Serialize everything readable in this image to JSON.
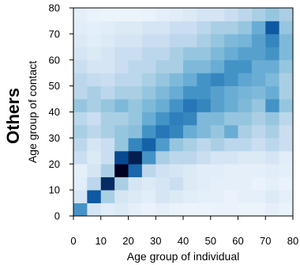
{
  "chart_data": {
    "type": "heatmap",
    "panel_title": "Others",
    "xlabel": "Age group of individual",
    "ylabel": "Age group of contact",
    "xlim": [
      0,
      80
    ],
    "ylim": [
      0,
      80
    ],
    "x_ticks": [
      "0",
      "10",
      "20",
      "30",
      "40",
      "50",
      "60",
      "70",
      "80"
    ],
    "y_ticks": [
      "0",
      "10",
      "20",
      "30",
      "40",
      "50",
      "60",
      "70",
      "80"
    ],
    "bin_width": 5,
    "colormap": [
      "#f7fbff",
      "#deebf7",
      "#c6dbef",
      "#9ecae1",
      "#6baed6",
      "#4292c6",
      "#2171b5",
      "#08519c",
      "#08306b",
      "#000022"
    ],
    "grid": false,
    "x_bins": [
      0,
      5,
      10,
      15,
      20,
      25,
      30,
      35,
      40,
      45,
      50,
      55,
      60,
      65,
      70,
      75
    ],
    "y_bins": [
      0,
      5,
      10,
      15,
      20,
      25,
      30,
      35,
      40,
      45,
      50,
      55,
      60,
      65,
      70,
      75
    ],
    "values": [
      [
        0.55,
        0.15,
        0.1,
        0.12,
        0.08,
        0.06,
        0.08,
        0.06,
        0.05,
        0.05,
        0.06,
        0.06,
        0.05,
        0.05,
        0.08,
        0.06
      ],
      [
        0.15,
        0.75,
        0.3,
        0.15,
        0.12,
        0.1,
        0.15,
        0.12,
        0.1,
        0.08,
        0.08,
        0.06,
        0.08,
        0.08,
        0.12,
        0.08
      ],
      [
        0.1,
        0.25,
        0.9,
        0.3,
        0.15,
        0.12,
        0.15,
        0.2,
        0.12,
        0.1,
        0.08,
        0.08,
        0.08,
        0.06,
        0.08,
        0.06
      ],
      [
        0.08,
        0.15,
        0.3,
        1.0,
        0.7,
        0.25,
        0.18,
        0.15,
        0.12,
        0.1,
        0.1,
        0.08,
        0.08,
        0.08,
        0.1,
        0.08
      ],
      [
        0.2,
        0.12,
        0.2,
        0.8,
        0.93,
        0.55,
        0.3,
        0.25,
        0.25,
        0.2,
        0.15,
        0.15,
        0.12,
        0.12,
        0.15,
        0.1
      ],
      [
        0.25,
        0.15,
        0.2,
        0.35,
        0.6,
        0.72,
        0.52,
        0.35,
        0.3,
        0.25,
        0.3,
        0.25,
        0.25,
        0.2,
        0.25,
        0.2
      ],
      [
        0.3,
        0.25,
        0.3,
        0.35,
        0.38,
        0.55,
        0.65,
        0.6,
        0.45,
        0.4,
        0.35,
        0.45,
        0.3,
        0.25,
        0.3,
        0.2
      ],
      [
        0.25,
        0.2,
        0.3,
        0.3,
        0.35,
        0.45,
        0.55,
        0.62,
        0.6,
        0.4,
        0.4,
        0.35,
        0.35,
        0.3,
        0.35,
        0.25
      ],
      [
        0.35,
        0.3,
        0.35,
        0.4,
        0.35,
        0.4,
        0.45,
        0.55,
        0.65,
        0.6,
        0.5,
        0.45,
        0.4,
        0.35,
        0.55,
        0.35
      ],
      [
        0.25,
        0.3,
        0.25,
        0.3,
        0.3,
        0.35,
        0.4,
        0.45,
        0.55,
        0.55,
        0.5,
        0.45,
        0.42,
        0.4,
        0.45,
        0.3
      ],
      [
        0.25,
        0.22,
        0.2,
        0.25,
        0.25,
        0.3,
        0.35,
        0.4,
        0.45,
        0.55,
        0.6,
        0.55,
        0.48,
        0.45,
        0.4,
        0.3
      ],
      [
        0.2,
        0.15,
        0.15,
        0.2,
        0.25,
        0.25,
        0.3,
        0.3,
        0.4,
        0.4,
        0.45,
        0.55,
        0.55,
        0.45,
        0.45,
        0.35
      ],
      [
        0.15,
        0.12,
        0.15,
        0.2,
        0.2,
        0.25,
        0.25,
        0.3,
        0.35,
        0.35,
        0.4,
        0.45,
        0.5,
        0.5,
        0.55,
        0.4
      ],
      [
        0.12,
        0.1,
        0.12,
        0.15,
        0.15,
        0.2,
        0.2,
        0.25,
        0.25,
        0.3,
        0.35,
        0.4,
        0.42,
        0.5,
        0.6,
        0.4
      ],
      [
        0.1,
        0.08,
        0.1,
        0.12,
        0.12,
        0.15,
        0.15,
        0.2,
        0.2,
        0.25,
        0.3,
        0.3,
        0.35,
        0.45,
        0.75,
        0.35
      ],
      [
        0.08,
        0.06,
        0.05,
        0.05,
        0.05,
        0.06,
        0.08,
        0.1,
        0.12,
        0.15,
        0.15,
        0.2,
        0.25,
        0.3,
        0.35,
        0.3
      ]
    ]
  }
}
